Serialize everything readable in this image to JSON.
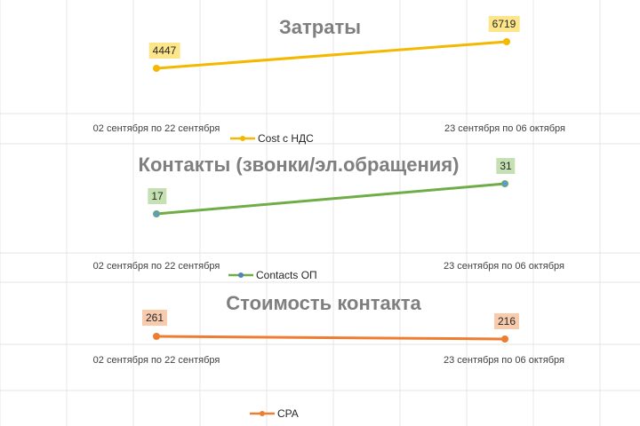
{
  "chart_data": [
    {
      "type": "line",
      "title": "Затраты",
      "categories": [
        "02 сентября по 22 сентября",
        "23 сентября по 06 октября"
      ],
      "series": [
        {
          "name": "Cost с НДС",
          "values": [
            4447,
            6719
          ]
        }
      ],
      "color": "#f5b800",
      "label_bg": "#fde58a",
      "grid": true,
      "legend_position": "bottom"
    },
    {
      "type": "line",
      "title": "Контакты (звонки/эл.обращения)",
      "categories": [
        "02 сентября по 22 сентября",
        "23 сентября по 06 октября"
      ],
      "series": [
        {
          "name": "Contacts ОП",
          "values": [
            17,
            31
          ]
        }
      ],
      "color": "#70ad47",
      "label_bg": "#c5e0b3",
      "grid": true,
      "legend_position": "bottom"
    },
    {
      "type": "line",
      "title": "Стоимость контакта",
      "categories": [
        "02 сентября по 22 сентября",
        "23 сентября по 06 октября"
      ],
      "series": [
        {
          "name": "CPA",
          "values": [
            261,
            216
          ]
        }
      ],
      "color": "#ed7d31",
      "label_bg": "#f8cbad",
      "grid": true,
      "legend_position": "bottom"
    }
  ]
}
